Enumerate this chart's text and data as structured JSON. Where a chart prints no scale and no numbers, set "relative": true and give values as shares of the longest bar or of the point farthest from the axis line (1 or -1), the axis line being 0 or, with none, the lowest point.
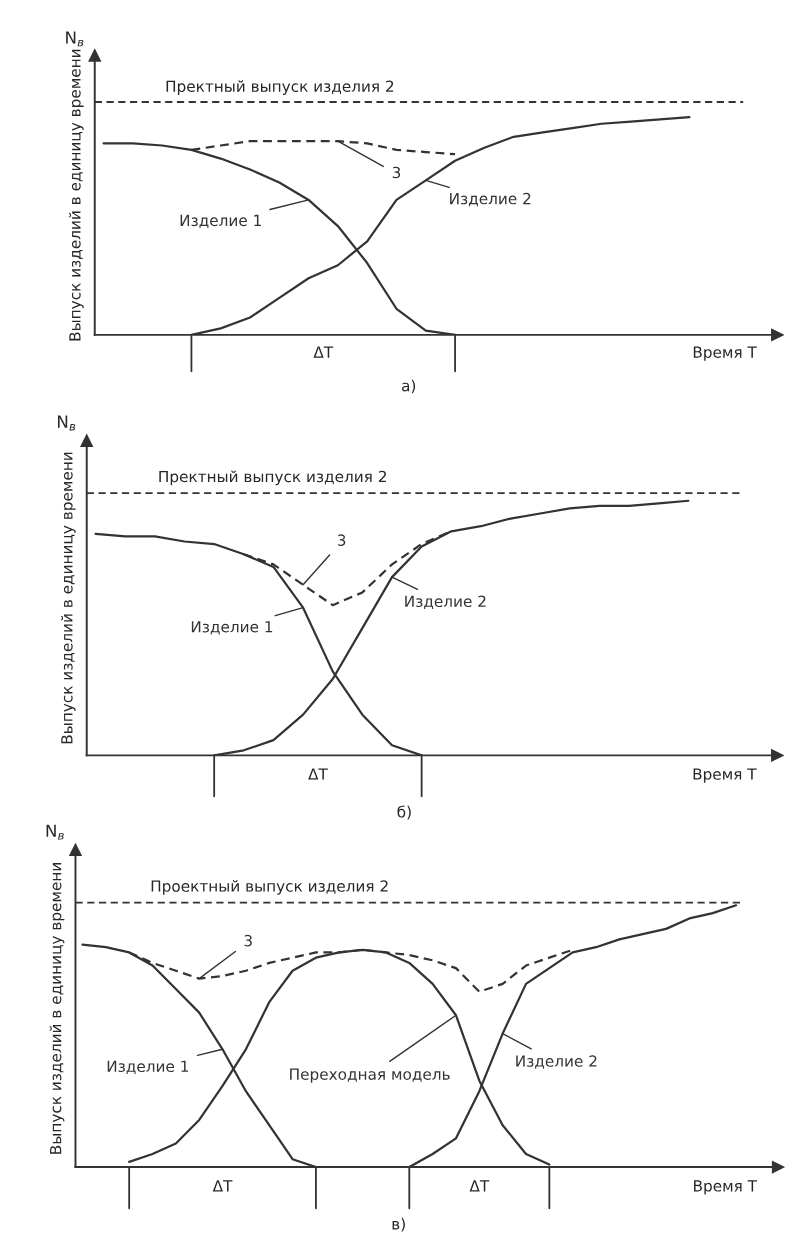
{
  "chart_data": [
    {
      "type": "line",
      "relative": true,
      "xlabel": "Время T",
      "ylabel": "Выпуск изделий в единицу времени",
      "annotations": [
        "N$_{в}$",
        "а)",
        "ΔT"
      ],
      "categories": [
        null,
        null,
        null,
        null,
        null,
        null,
        null,
        null,
        null,
        null,
        null,
        null,
        null,
        null,
        null,
        null,
        null,
        null,
        null,
        null,
        null
      ],
      "series": [
        {
          "name": "Изделие 1",
          "color": "#333333",
          "line_style": "solid",
          "values": [
            0.88,
            0.88,
            0.87,
            0.85,
            0.81,
            0.76,
            0.7,
            0.62,
            0.5,
            0.33,
            0.12,
            0.02,
            0,
            null,
            null,
            null,
            null,
            null,
            null,
            null,
            null
          ]
        },
        {
          "name": "Изделие 2",
          "color": "#333333",
          "line_style": "solid",
          "values": [
            null,
            null,
            null,
            0,
            0.03,
            0.08,
            0.17,
            0.26,
            0.32,
            0.43,
            0.62,
            0.71,
            0.8,
            0.86,
            0.91,
            0.93,
            0.95,
            0.97,
            0.98,
            0.99,
            1
          ]
        },
        {
          "name": "3",
          "color": "#333333",
          "line_style": "dashed",
          "values": [
            null,
            null,
            null,
            0.85,
            0.87,
            0.89,
            0.89,
            0.89,
            0.89,
            0.88,
            0.85,
            0.84,
            0.83,
            null,
            null,
            null,
            null,
            null,
            null,
            null,
            null
          ]
        }
      ],
      "ref_lines": [
        {
          "axis": "y",
          "value": 1.07,
          "label": "Пректный выпуск изделия 2",
          "line_style": "dashed",
          "color": "#333333"
        }
      ]
    },
    {
      "type": "line",
      "relative": true,
      "xlabel": "Время T",
      "ylabel": "Выпуск изделий в единицу времени",
      "annotations": [
        "N$_{в}$",
        "б)",
        "ΔT"
      ],
      "categories": [
        null,
        null,
        null,
        null,
        null,
        null,
        null,
        null,
        null,
        null,
        null,
        null,
        null,
        null,
        null,
        null,
        null,
        null,
        null,
        null,
        null
      ],
      "series": [
        {
          "name": "Изделие 1",
          "color": "#333333",
          "line_style": "solid",
          "values": [
            0.87,
            0.86,
            0.86,
            0.84,
            0.83,
            0.79,
            0.74,
            0.58,
            0.33,
            0.16,
            0.04,
            0,
            null,
            null,
            null,
            null,
            null,
            null,
            null,
            null,
            null
          ]
        },
        {
          "name": "Изделие 2",
          "color": "#333333",
          "line_style": "solid",
          "values": [
            null,
            null,
            null,
            null,
            0,
            0.02,
            0.06,
            0.16,
            0.3,
            0.5,
            0.7,
            0.82,
            0.88,
            0.9,
            0.93,
            0.95,
            0.97,
            0.98,
            0.98,
            0.99,
            1
          ]
        },
        {
          "name": "3",
          "color": "#333333",
          "line_style": "dashed",
          "values": [
            null,
            null,
            null,
            null,
            null,
            0.79,
            0.75,
            0.67,
            0.59,
            0.64,
            0.75,
            0.83,
            0.88,
            null,
            null,
            null,
            null,
            null,
            null,
            null,
            null
          ]
        }
      ],
      "ref_lines": [
        {
          "axis": "y",
          "value": 1.03,
          "label": "Пректный выпуск изделия 2",
          "line_style": "dashed",
          "color": "#333333"
        }
      ]
    },
    {
      "type": "line",
      "relative": true,
      "xlabel": "Время T",
      "ylabel": "Выпуск изделий в единицу времени",
      "annotations": [
        "N$_{в}$",
        "в)",
        "ΔT",
        "ΔT"
      ],
      "categories": [
        null,
        null,
        null,
        null,
        null,
        null,
        null,
        null,
        null,
        null,
        null,
        null,
        null,
        null,
        null,
        null,
        null,
        null,
        null,
        null,
        null,
        null,
        null,
        null,
        null,
        null,
        null,
        null,
        null
      ],
      "series": [
        {
          "name": "Изделие 1",
          "color": "#333333",
          "line_style": "solid",
          "values": [
            0.85,
            0.84,
            0.82,
            0.77,
            0.68,
            0.59,
            0.45,
            0.29,
            0.16,
            0.03,
            0,
            null,
            null,
            null,
            null,
            null,
            null,
            null,
            null,
            null,
            null,
            null,
            null,
            null,
            null,
            null,
            null,
            null,
            null
          ]
        },
        {
          "name": "Переходная модель",
          "color": "#333333",
          "line_style": "solid",
          "values": [
            null,
            null,
            0.02,
            0.05,
            0.09,
            0.18,
            0.31,
            0.45,
            0.63,
            0.75,
            0.8,
            0.82,
            0.83,
            0.82,
            0.78,
            0.7,
            0.58,
            0.33,
            0.16,
            0.05,
            0.01,
            null,
            null,
            null,
            null,
            null,
            null,
            null,
            null
          ]
        },
        {
          "name": "Изделие 2",
          "color": "#333333",
          "line_style": "solid",
          "values": [
            null,
            null,
            null,
            null,
            null,
            null,
            null,
            null,
            null,
            null,
            null,
            null,
            null,
            null,
            0,
            0.05,
            0.11,
            0.29,
            0.51,
            0.7,
            0.76,
            0.82,
            0.84,
            0.87,
            0.89,
            0.91,
            0.95,
            0.97,
            1
          ]
        },
        {
          "name": "3",
          "color": "#333333",
          "line_style": "dashed",
          "values": [
            null,
            null,
            0.82,
            0.78,
            0.75,
            0.72,
            0.73,
            0.75,
            0.78,
            0.8,
            0.82,
            0.82,
            0.83,
            0.82,
            0.81,
            0.79,
            0.76,
            0.67,
            0.7,
            0.77,
            0.8,
            0.83,
            null,
            null,
            null,
            null,
            null,
            null,
            null
          ]
        }
      ],
      "ref_lines": [
        {
          "axis": "y",
          "value": 1.01,
          "label": "Проектный выпуск изделия 2",
          "line_style": "dashed",
          "color": "#333333"
        }
      ]
    }
  ]
}
